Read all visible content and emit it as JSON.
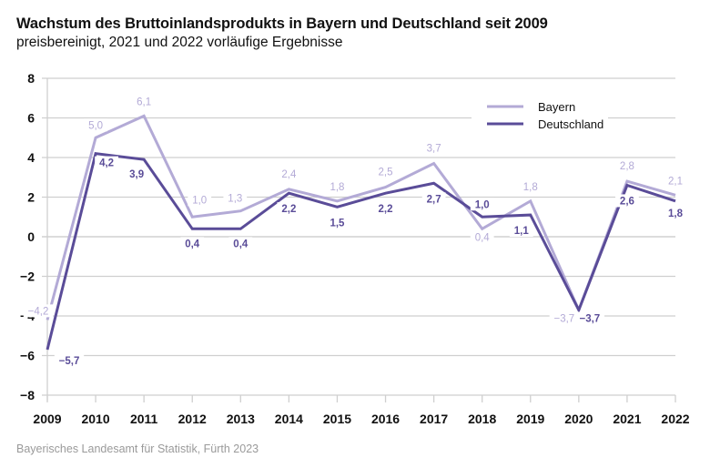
{
  "chart_data": {
    "type": "line",
    "title": "Wachstum des Bruttoinlandsprodukts in Bayern und Deutschland seit 2009",
    "subtitle": "preisbereinigt, 2021 und 2022 vorläufige Ergebnisse",
    "xlabel": "",
    "ylabel": "",
    "x": [
      "2009",
      "2010",
      "2011",
      "2012",
      "2013",
      "2014",
      "2015",
      "2016",
      "2017",
      "2018",
      "2019",
      "2020",
      "2021",
      "2022"
    ],
    "ylim": [
      -8,
      8
    ],
    "yticks": [
      8,
      6,
      4,
      2,
      0,
      -2,
      -4,
      -6,
      -8
    ],
    "ytick_labels": [
      "8",
      "6",
      "4",
      "2",
      "0",
      "−2",
      "−4",
      "−6",
      "−8"
    ],
    "grid": true,
    "legend_position": "top-right",
    "series": [
      {
        "name": "Bayern",
        "color": "#b3aad6",
        "values": [
          -4.2,
          5.0,
          6.1,
          1.0,
          1.3,
          2.4,
          1.8,
          2.5,
          3.7,
          0.4,
          1.8,
          -3.7,
          2.8,
          2.1
        ],
        "labels": [
          "−4,2",
          "5,0",
          "6,1",
          "1,0",
          "1,3",
          "2,4",
          "1,8",
          "2,5",
          "3,7",
          "0,4",
          "1,8",
          "−3,7",
          "2,8",
          "2,1"
        ]
      },
      {
        "name": "Deutschland",
        "color": "#5a4c98",
        "values": [
          -5.7,
          4.2,
          3.9,
          0.4,
          0.4,
          2.2,
          1.5,
          2.2,
          2.7,
          1.0,
          1.1,
          -3.7,
          2.6,
          1.8
        ],
        "labels": [
          "−5,7",
          "4,2",
          "3,9",
          "0,4",
          "0,4",
          "2,2",
          "1,5",
          "2,2",
          "2,7",
          "1,0",
          "1,1",
          "−3,7",
          "2,6",
          "1,8"
        ]
      }
    ],
    "source": "Bayerisches Landesamt für Statistik, Fürth 2023"
  }
}
